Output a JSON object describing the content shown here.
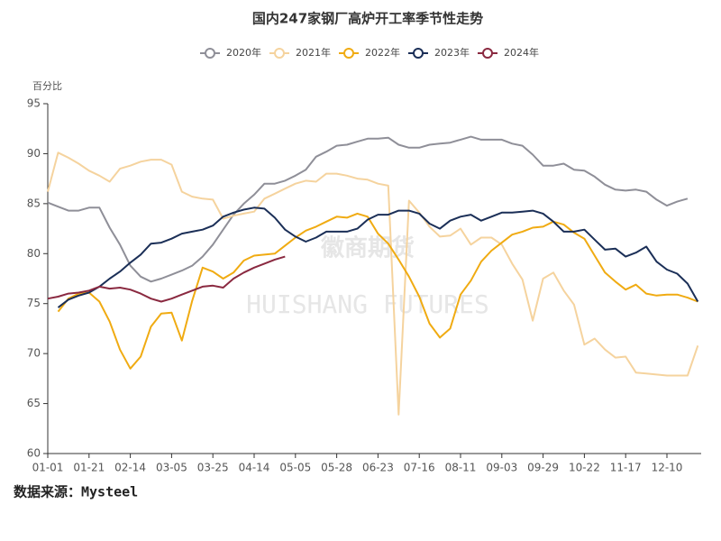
{
  "chart_data": {
    "type": "line",
    "title": "国内247家钢厂高炉开工率季节性走势",
    "y_label": "百分比",
    "source": "数据来源：Mysteel",
    "watermark": [
      "徽商期货",
      "HUISHANG FUTURES"
    ],
    "categories": [
      "01-01",
      null,
      null,
      null,
      "01-21",
      null,
      null,
      null,
      "02-14",
      null,
      null,
      null,
      "03-05",
      null,
      null,
      null,
      "03-25",
      null,
      null,
      null,
      "04-14",
      null,
      null,
      null,
      "05-05",
      null,
      null,
      null,
      "05-28",
      null,
      null,
      null,
      "06-23",
      null,
      null,
      null,
      "07-16",
      null,
      null,
      null,
      "08-11",
      null,
      null,
      null,
      "09-03",
      null,
      null,
      null,
      "09-29",
      null,
      null,
      null,
      "10-22",
      null,
      null,
      null,
      "11-17",
      null,
      null,
      null,
      "12-10",
      null,
      null,
      null
    ],
    "ylim": [
      60,
      95
    ],
    "yticks": [
      60,
      65,
      70,
      75,
      80,
      85,
      90,
      95
    ],
    "grid": false,
    "legend": "top",
    "series": [
      {
        "name": "2020年",
        "color": "#8f8f98",
        "values": [
          85.1,
          84.7,
          84.3,
          84.3,
          84.6,
          84.6,
          82.6,
          80.9,
          78.8,
          77.7,
          77.2,
          77.5,
          77.9,
          78.3,
          78.8,
          79.7,
          80.9,
          82.4,
          83.9,
          85.0,
          85.9,
          87.0,
          87.0,
          87.3,
          87.8,
          88.4,
          89.7,
          90.2,
          90.8,
          90.9,
          91.2,
          91.5,
          91.5,
          91.6,
          90.9,
          90.6,
          90.6,
          90.9,
          91.0,
          91.1,
          91.4,
          91.7,
          91.4,
          91.4,
          91.4,
          91.0,
          90.8,
          89.9,
          88.8,
          88.8,
          89.0,
          88.4,
          88.3,
          87.7,
          86.9,
          86.4,
          86.3,
          86.4,
          86.2,
          85.4,
          84.8,
          85.2,
          85.5,
          null
        ]
      },
      {
        "name": "2021年",
        "color": "#f5d39e",
        "values": [
          86.2,
          90.1,
          89.6,
          89.0,
          88.3,
          87.8,
          87.2,
          88.5,
          88.8,
          89.2,
          89.4,
          89.4,
          88.9,
          86.2,
          85.7,
          85.5,
          85.4,
          83.5,
          83.8,
          84.0,
          84.2,
          85.5,
          86.0,
          86.5,
          87.0,
          87.3,
          87.2,
          88.0,
          88.0,
          87.8,
          87.5,
          87.4,
          87.0,
          86.8,
          63.9,
          85.3,
          84.1,
          82.7,
          81.7,
          81.8,
          82.5,
          80.9,
          81.6,
          81.6,
          80.9,
          79.0,
          77.4,
          73.3,
          77.5,
          78.1,
          76.3,
          74.9,
          70.9,
          71.5,
          70.4,
          69.6,
          69.7,
          68.1,
          68.0,
          67.9,
          67.8,
          67.8,
          67.8,
          70.8
        ]
      },
      {
        "name": "2022年",
        "color": "#f0ab12",
        "values": [
          null,
          74.2,
          75.5,
          76.0,
          76.1,
          75.2,
          73.2,
          70.4,
          68.5,
          69.7,
          72.7,
          74.0,
          74.1,
          71.3,
          75.3,
          78.6,
          78.2,
          77.5,
          78.1,
          79.3,
          79.8,
          79.9,
          80.0,
          80.8,
          81.6,
          82.3,
          82.7,
          83.2,
          83.7,
          83.6,
          84.0,
          83.7,
          82.0,
          81.0,
          79.4,
          77.7,
          75.7,
          73.0,
          71.6,
          72.5,
          75.9,
          77.3,
          79.2,
          80.3,
          81.1,
          81.9,
          82.2,
          82.6,
          82.7,
          83.2,
          82.9,
          82.1,
          81.5,
          79.8,
          78.1,
          77.2,
          76.4,
          76.9,
          76.0,
          75.8,
          75.9,
          75.9,
          75.6,
          75.2
        ]
      },
      {
        "name": "2023年",
        "color": "#1b2f57",
        "values": [
          null,
          74.6,
          75.4,
          75.8,
          76.1,
          76.7,
          77.5,
          78.2,
          79.1,
          79.9,
          81.0,
          81.1,
          81.5,
          82.0,
          82.2,
          82.4,
          82.8,
          83.7,
          84.1,
          84.4,
          84.6,
          84.5,
          83.6,
          82.4,
          81.7,
          81.2,
          81.6,
          82.2,
          82.2,
          82.2,
          82.5,
          83.4,
          83.9,
          83.9,
          84.3,
          84.3,
          84.0,
          83.0,
          82.5,
          83.3,
          83.7,
          83.9,
          83.3,
          83.7,
          84.1,
          84.1,
          84.2,
          84.3,
          84.0,
          83.2,
          82.2,
          82.2,
          82.4,
          81.4,
          80.4,
          80.5,
          79.7,
          80.1,
          80.7,
          79.2,
          78.4,
          78.0,
          77.0,
          75.2
        ]
      },
      {
        "name": "2024年",
        "color": "#8a2940",
        "values": [
          75.5,
          75.7,
          76.0,
          76.1,
          76.3,
          76.7,
          76.5,
          76.6,
          76.4,
          76.0,
          75.5,
          75.2,
          75.5,
          75.9,
          76.3,
          76.7,
          76.8,
          76.6,
          77.5,
          78.1,
          78.6,
          79.0,
          79.4,
          79.7,
          null,
          null,
          null,
          null,
          null,
          null,
          null,
          null,
          null,
          null,
          null,
          null,
          null,
          null,
          null,
          null,
          null,
          null,
          null,
          null,
          null,
          null,
          null,
          null,
          null,
          null,
          null,
          null,
          null,
          null,
          null,
          null,
          null,
          null,
          null,
          null,
          null,
          null,
          null,
          null
        ]
      }
    ]
  }
}
